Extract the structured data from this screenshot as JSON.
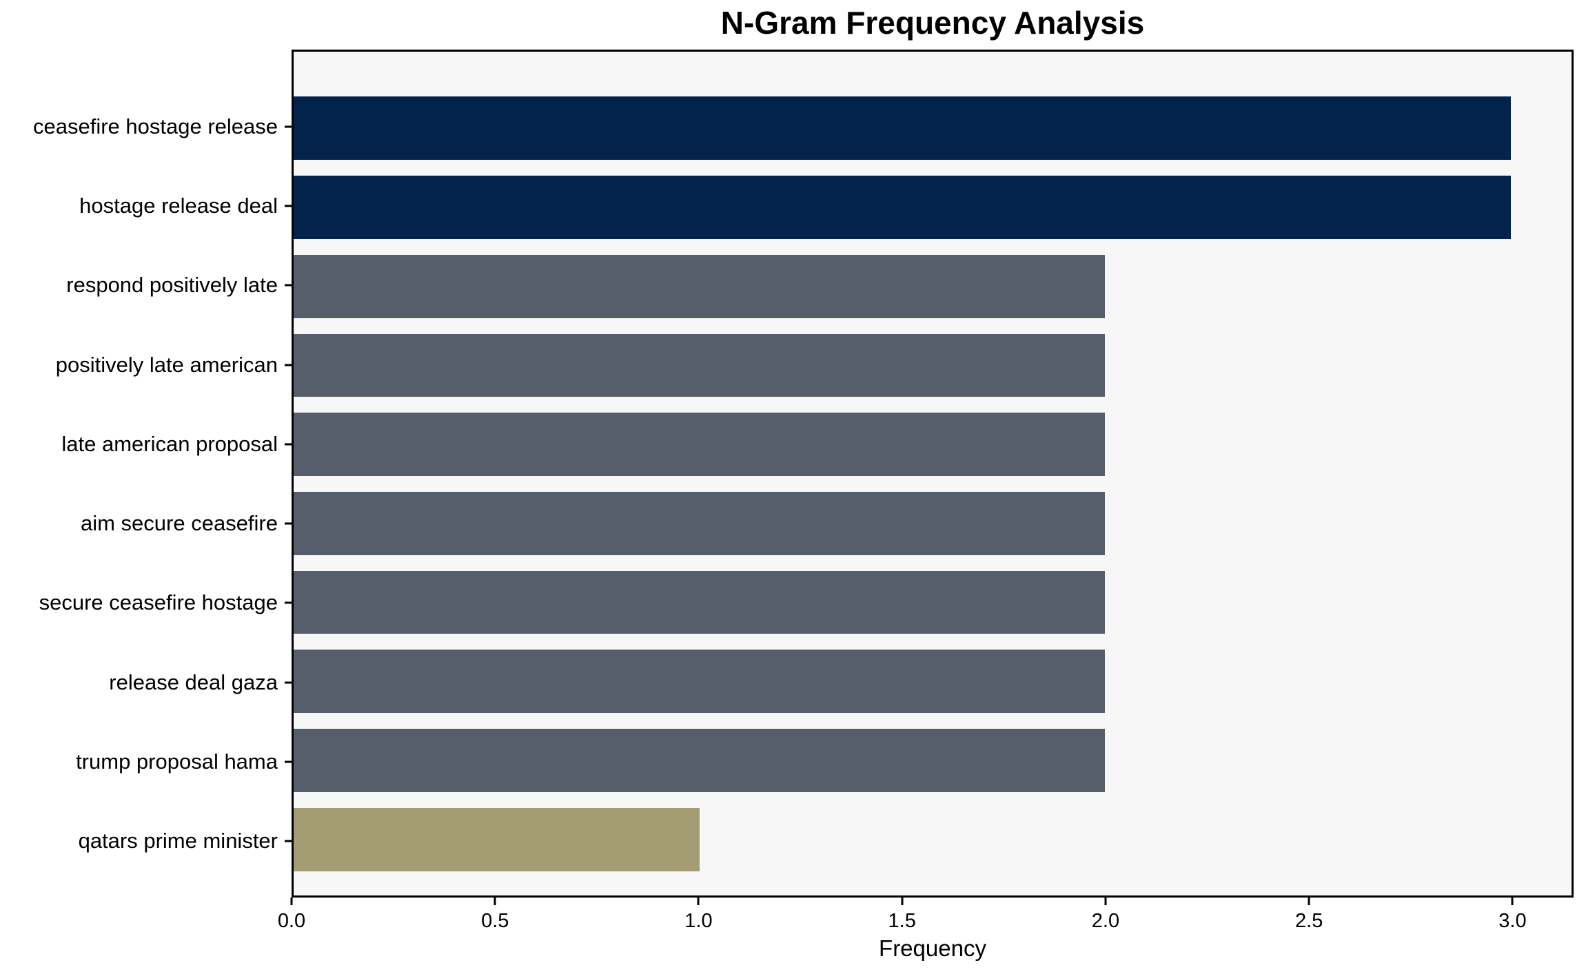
{
  "figure": {
    "background_color": "#ffffff",
    "plot_background_color": "#f7f7f7",
    "spine_color": "#000000"
  },
  "chart_data": {
    "type": "bar",
    "orientation": "horizontal",
    "title": "N-Gram Frequency Analysis",
    "xlabel": "Frequency",
    "ylabel": "",
    "categories": [
      "ceasefire hostage release",
      "hostage release deal",
      "respond positively late",
      "positively late american",
      "late american proposal",
      "aim secure ceasefire",
      "secure ceasefire hostage",
      "release deal gaza",
      "trump proposal hama",
      "qatars prime minister"
    ],
    "values": [
      3,
      3,
      2,
      2,
      2,
      2,
      2,
      2,
      2,
      1
    ],
    "bar_colors": [
      "#02234c",
      "#02234c",
      "#565d6b",
      "#565d6b",
      "#565d6b",
      "#565d6b",
      "#565d6b",
      "#565d6b",
      "#565d6b",
      "#a49c72"
    ],
    "xlim": [
      0,
      3.15
    ],
    "xtick_values": [
      0,
      0.5,
      1,
      1.5,
      2,
      2.5,
      3
    ],
    "xtick_labels": [
      "0.0",
      "0.5",
      "1.0",
      "1.5",
      "2.0",
      "2.5",
      "3.0"
    ],
    "grid": false,
    "legend": null
  }
}
